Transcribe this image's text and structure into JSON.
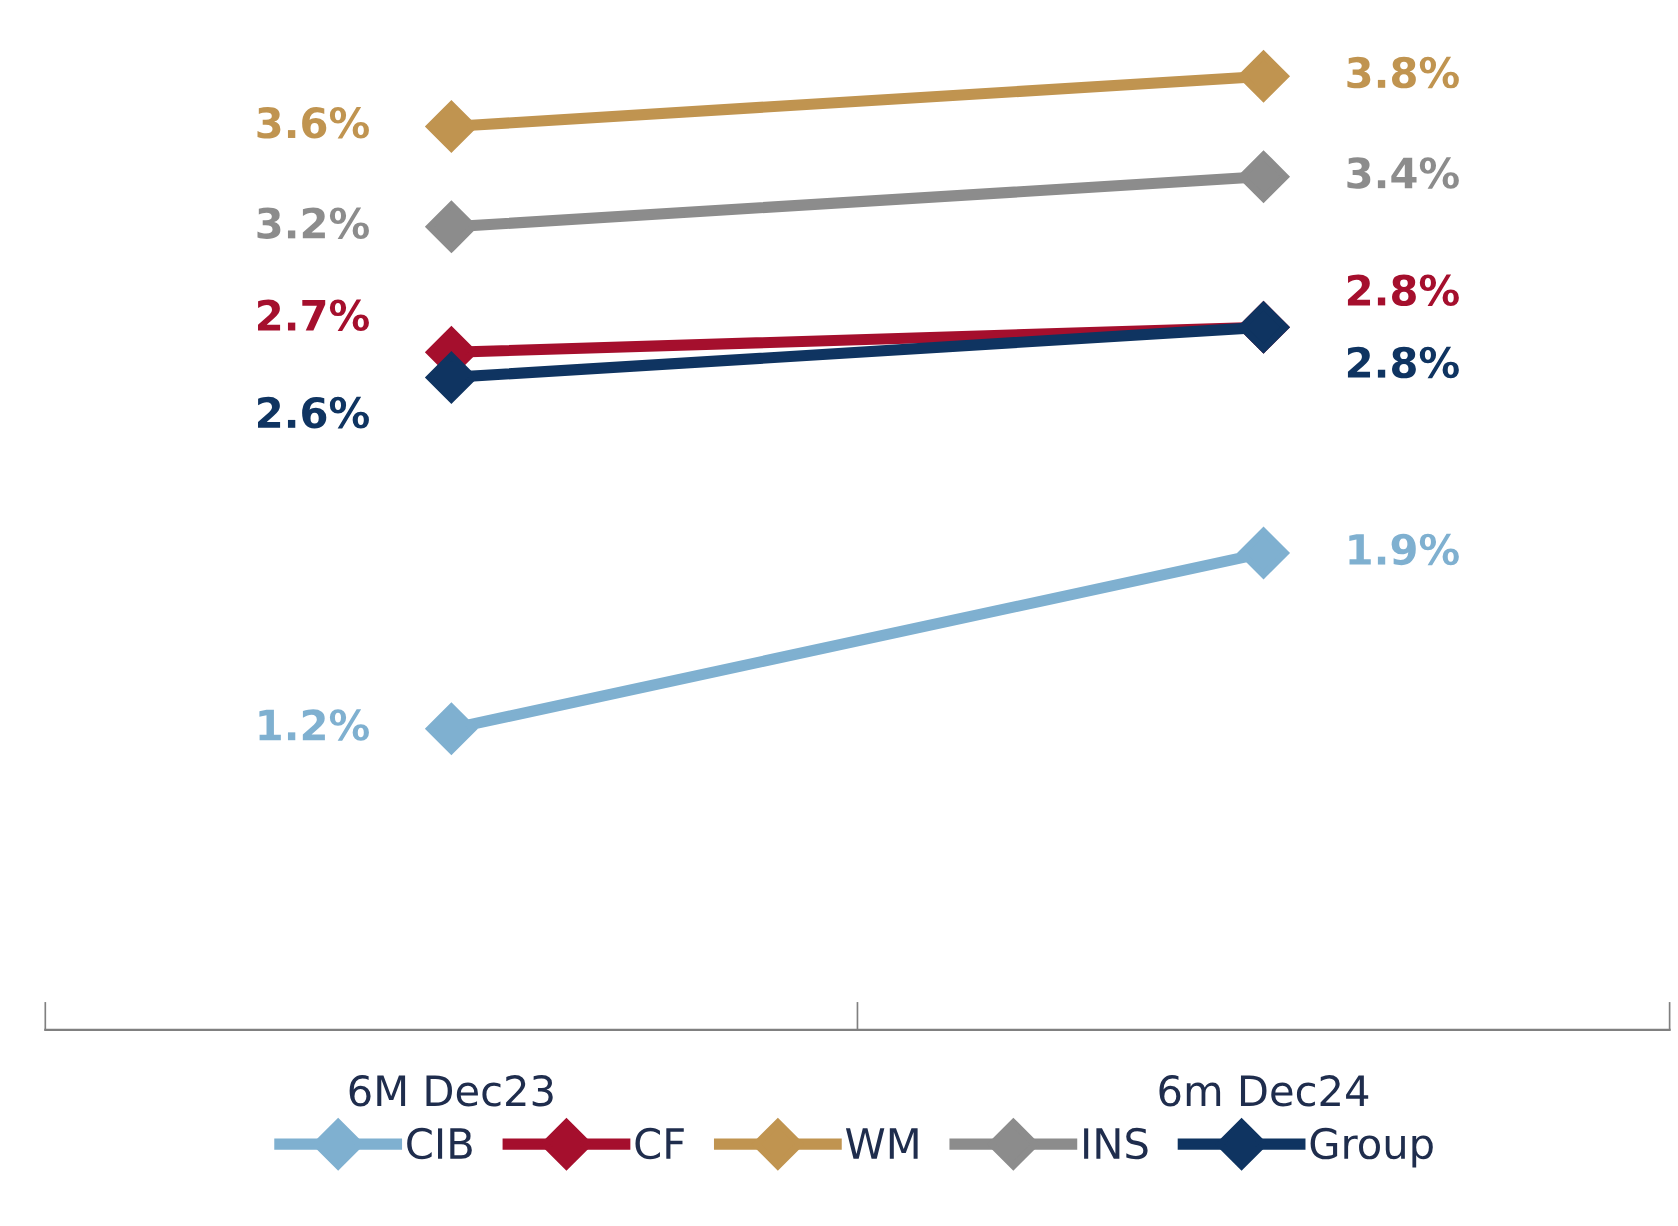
{
  "chart_data": {
    "type": "line",
    "categories": [
      "6M Dec23",
      "6m Dec24"
    ],
    "series": [
      {
        "name": "CIB",
        "color": "#7fb0d0",
        "values": [
          1.2,
          1.9
        ],
        "value_labels": [
          "1.2%",
          "1.9%"
        ]
      },
      {
        "name": "CF",
        "color": "#a50f2d",
        "values": [
          2.7,
          2.8
        ],
        "value_labels": [
          "2.7%",
          "2.8%"
        ]
      },
      {
        "name": "WM",
        "color": "#c09450",
        "values": [
          3.6,
          3.8
        ],
        "value_labels": [
          "3.6%",
          "3.8%"
        ]
      },
      {
        "name": "INS",
        "color": "#8c8c8c",
        "values": [
          3.2,
          3.4
        ],
        "value_labels": [
          "3.2%",
          "3.4%"
        ]
      },
      {
        "name": "Group",
        "color": "#0f3461",
        "values": [
          2.6,
          2.8
        ],
        "value_labels": [
          "2.6%",
          "2.8%"
        ]
      }
    ],
    "marker": "diamond",
    "line_style": "solid",
    "legend": "bottom",
    "grid": false,
    "tick_labels": "x"
  }
}
